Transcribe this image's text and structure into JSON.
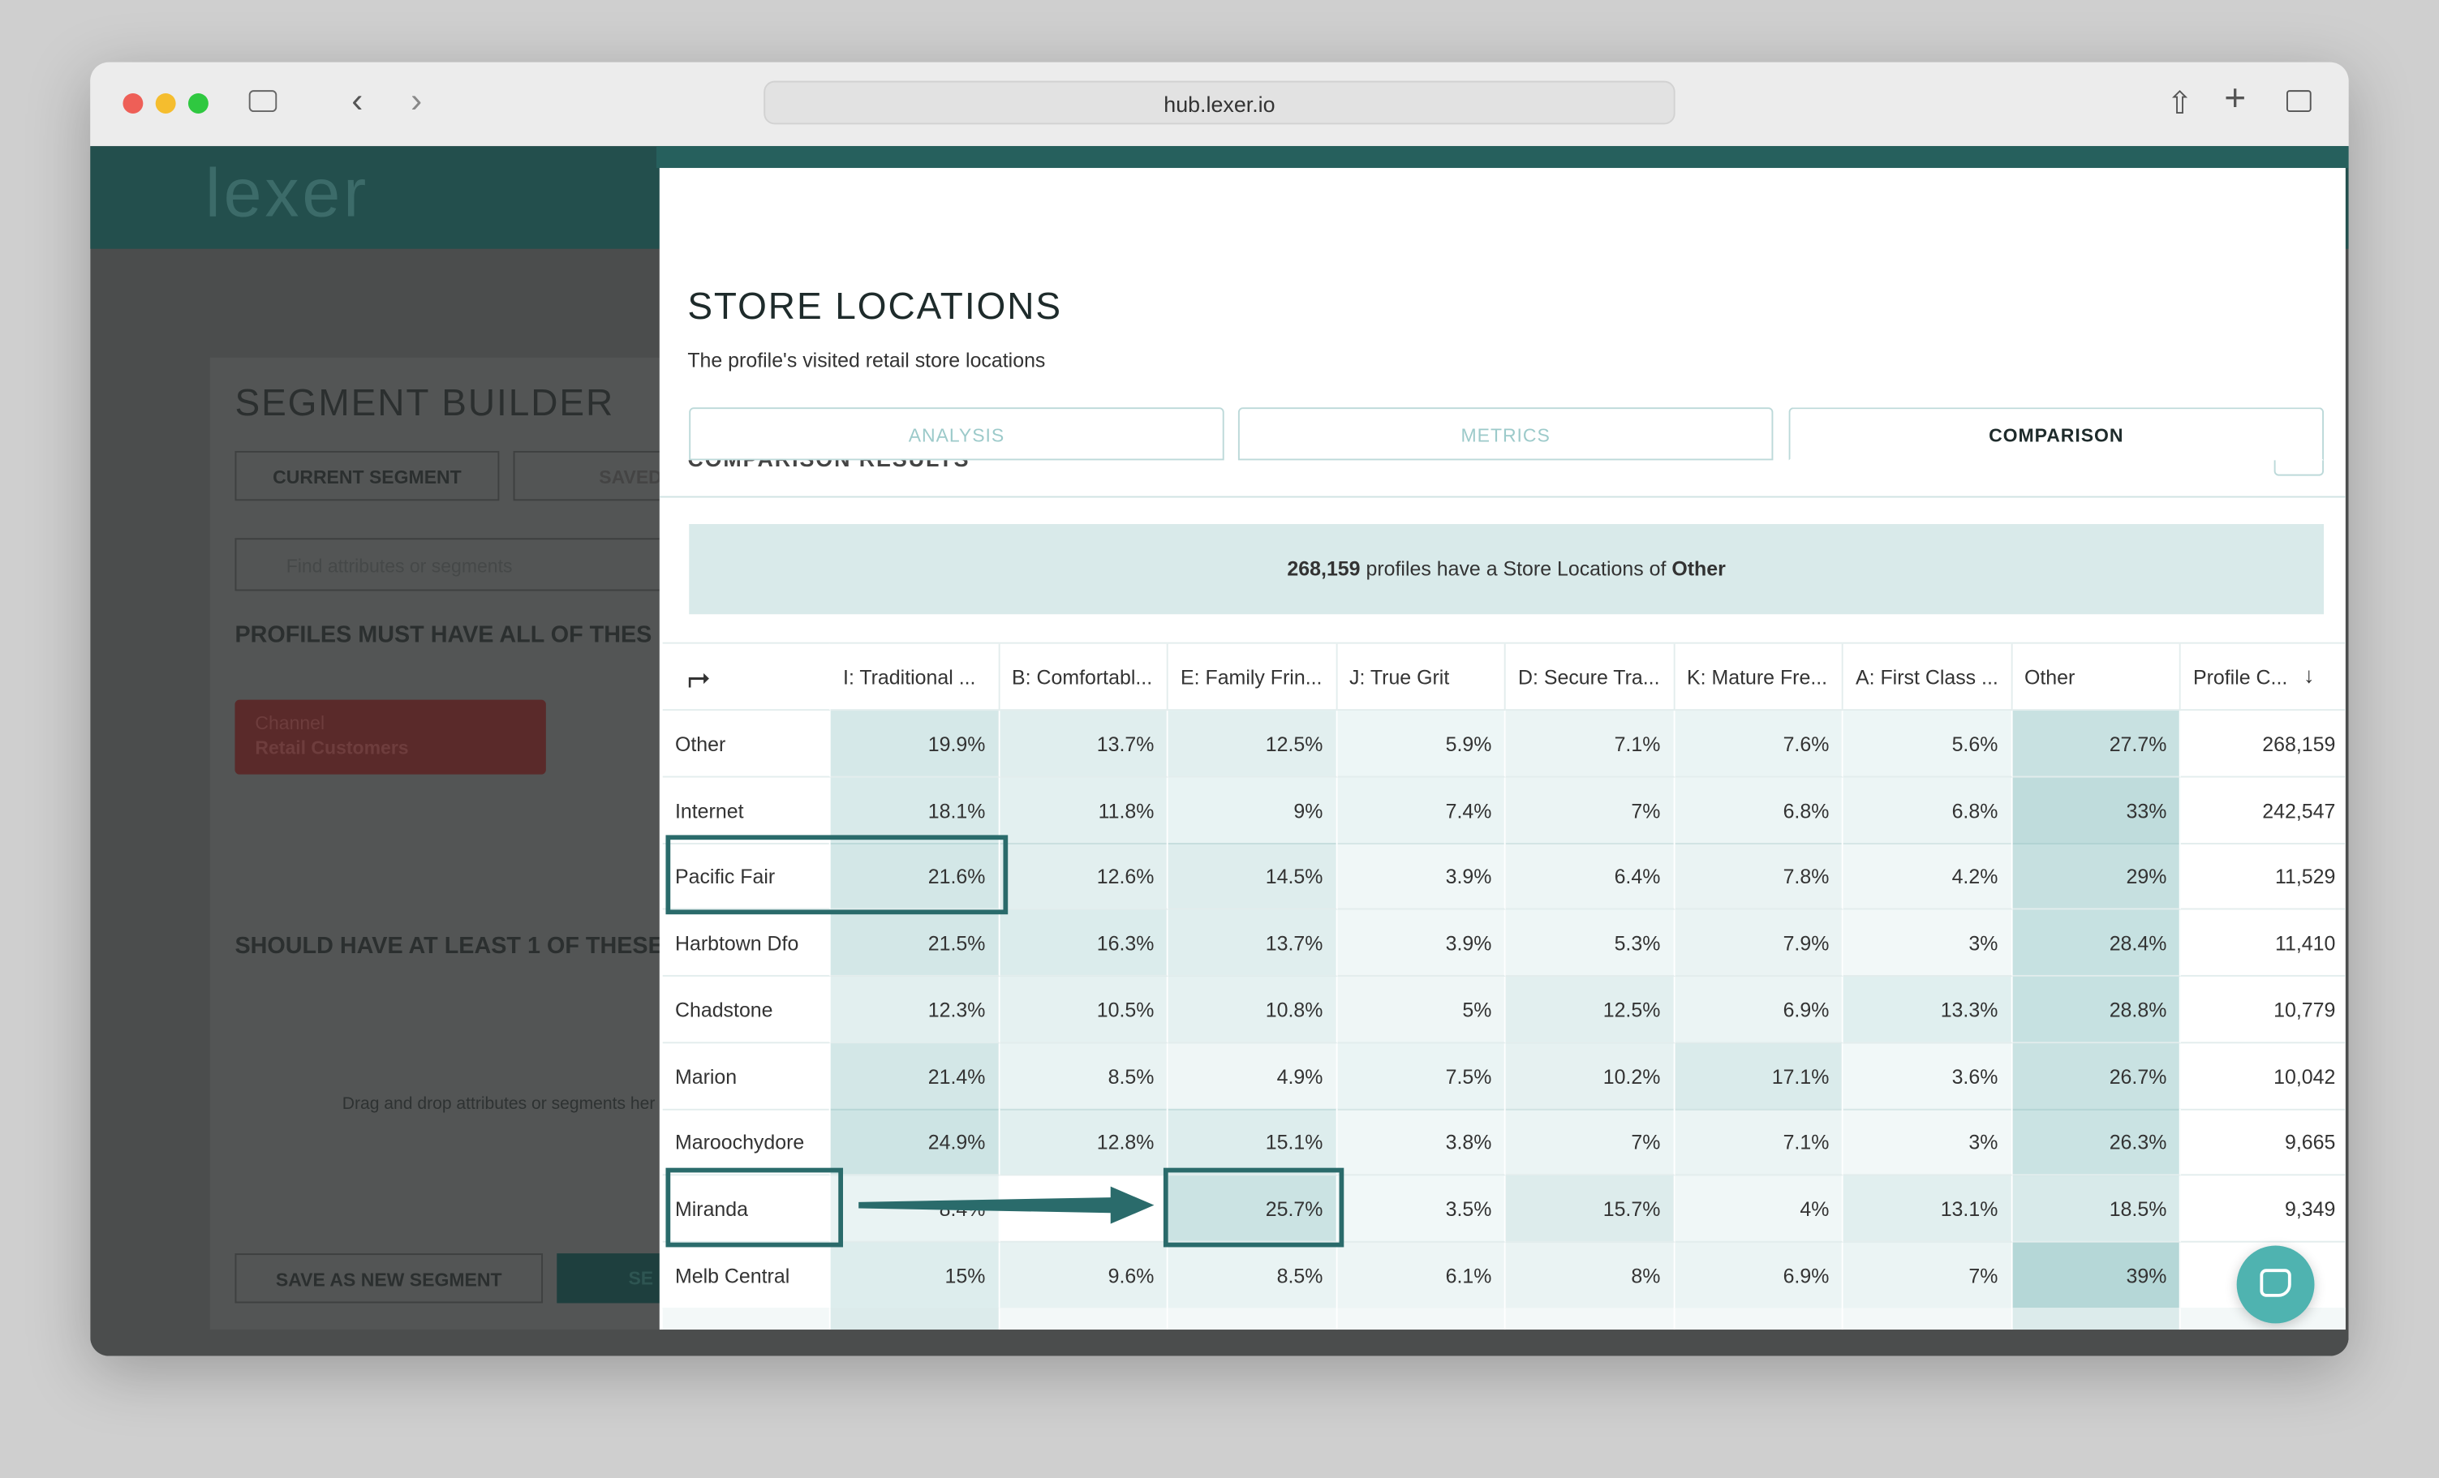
{
  "browser": {
    "url": "hub.lexer.io"
  },
  "background": {
    "logo": "lexer",
    "title": "SEGMENT BUILDER",
    "tabs": [
      "CURRENT SEGMENT",
      "SAVED SE"
    ],
    "search_placeholder": "Find attributes or segments",
    "must_have": "PROFILES MUST HAVE ALL OF THES",
    "chip": {
      "label": "Channel",
      "value": "Retail Customers"
    },
    "should_have": "SHOULD HAVE AT LEAST 1 OF THESE",
    "drop_hint": "Drag and drop attributes or segments her",
    "buttons": [
      "SAVE AS NEW SEGMENT",
      "SE"
    ]
  },
  "modal": {
    "title": "STORE LOCATIONS",
    "subtitle": "The profile's visited retail store locations",
    "tabs": [
      "ANALYSIS",
      "METRICS",
      "COMPARISON"
    ],
    "section": "COMPARISON RESULTS",
    "banner": {
      "count": "268,159",
      "text": "profiles have a Store Locations of",
      "value": "Other"
    },
    "table": {
      "columns": [
        "I: Traditional ...",
        "B: Comfortabl...",
        "E: Family Frin...",
        "J: True Grit",
        "D: Secure Tra...",
        "K: Mature Fre...",
        "A: First Class ...",
        "Other",
        "Profile C..."
      ],
      "rows": [
        {
          "name": "Other",
          "cells": [
            "19.9%",
            "13.7%",
            "12.5%",
            "5.9%",
            "7.1%",
            "7.6%",
            "5.6%",
            "27.7%",
            "268,159"
          ]
        },
        {
          "name": "Internet",
          "cells": [
            "18.1%",
            "11.8%",
            "9%",
            "7.4%",
            "7%",
            "6.8%",
            "6.8%",
            "33%",
            "242,547"
          ]
        },
        {
          "name": "Pacific Fair",
          "cells": [
            "21.6%",
            "12.6%",
            "14.5%",
            "3.9%",
            "6.4%",
            "7.8%",
            "4.2%",
            "29%",
            "11,529"
          ]
        },
        {
          "name": "Harbtown Dfo",
          "cells": [
            "21.5%",
            "16.3%",
            "13.7%",
            "3.9%",
            "5.3%",
            "7.9%",
            "3%",
            "28.4%",
            "11,410"
          ]
        },
        {
          "name": "Chadstone",
          "cells": [
            "12.3%",
            "10.5%",
            "10.8%",
            "5%",
            "12.5%",
            "6.9%",
            "13.3%",
            "28.8%",
            "10,779"
          ]
        },
        {
          "name": "Marion",
          "cells": [
            "21.4%",
            "8.5%",
            "4.9%",
            "7.5%",
            "10.2%",
            "17.1%",
            "3.6%",
            "26.7%",
            "10,042"
          ]
        },
        {
          "name": "Maroochydore",
          "cells": [
            "24.9%",
            "12.8%",
            "15.1%",
            "3.8%",
            "7%",
            "7.1%",
            "3%",
            "26.3%",
            "9,665"
          ]
        },
        {
          "name": "Miranda",
          "cells": [
            "8.4%",
            null,
            "25.7%",
            "3.5%",
            "15.7%",
            "4%",
            "13.1%",
            "18.5%",
            "9,349"
          ]
        },
        {
          "name": "Melb Central",
          "cells": [
            "15%",
            "9.6%",
            "8.5%",
            "6.1%",
            "8%",
            "6.9%",
            "7%",
            "39%",
            null
          ]
        }
      ]
    }
  }
}
